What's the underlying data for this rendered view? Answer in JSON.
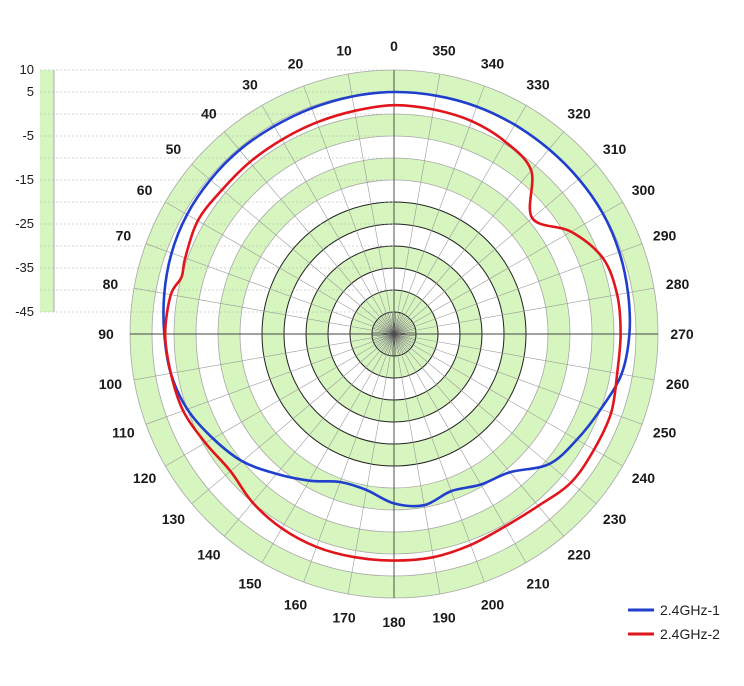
{
  "chart_data": {
    "type": "polar-line",
    "angle_direction": "counter-clockwise",
    "zero_at": "top",
    "angle_ticks": [
      0,
      10,
      20,
      30,
      40,
      50,
      60,
      70,
      80,
      90,
      100,
      110,
      120,
      130,
      140,
      150,
      160,
      170,
      180,
      190,
      200,
      210,
      220,
      230,
      240,
      250,
      260,
      270,
      280,
      290,
      300,
      310,
      320,
      330,
      340,
      350
    ],
    "angle_tick_labels": [
      "0",
      "10",
      "20",
      "30",
      "40",
      "50",
      "60",
      "70",
      "80",
      "90",
      "100",
      "110",
      "120",
      "130",
      "140",
      "150",
      "160",
      "170",
      "180",
      "190",
      "200",
      "210",
      "220",
      "230",
      "240",
      "250",
      "260",
      "270",
      "280",
      "290",
      "300",
      "310",
      "320",
      "330",
      "340",
      "350"
    ],
    "radial_range": [
      -50,
      10
    ],
    "radial_ticks": [
      10,
      5,
      -5,
      -15,
      -25,
      -35,
      -45
    ],
    "radial_tick_labels": [
      "10",
      "5",
      "-5",
      "-15",
      "-25",
      "-35",
      "-45"
    ],
    "grid": true,
    "legend_position": "bottom-right",
    "series": [
      {
        "name": "2.4GHz-1",
        "color": "#1f3fcc",
        "angles": [
          0,
          10,
          20,
          30,
          40,
          50,
          60,
          70,
          80,
          90,
          100,
          110,
          120,
          130,
          140,
          150,
          160,
          170,
          180,
          190,
          200,
          210,
          220,
          230,
          240,
          250,
          260,
          270,
          280,
          290,
          300,
          310,
          320,
          330,
          340,
          350
        ],
        "values": [
          5.0,
          4.8,
          4.6,
          4.5,
          4.6,
          4.5,
          4.3,
          3.8,
          3.0,
          2.2,
          1.5,
          0.0,
          -2.5,
          -5.0,
          -8.5,
          -11.5,
          -14.2,
          -14.0,
          -11.5,
          -10.5,
          -12.0,
          -10.5,
          -9.0,
          -4.0,
          -2.0,
          0.0,
          2.5,
          3.5,
          4.0,
          4.5,
          4.8,
          4.8,
          4.8,
          4.9,
          5.0,
          5.0
        ]
      },
      {
        "name": "2.4GHz-2",
        "color": "#e0161c",
        "angles": [
          0,
          10,
          20,
          30,
          40,
          50,
          60,
          70,
          75,
          80,
          90,
          100,
          110,
          120,
          130,
          140,
          150,
          160,
          170,
          180,
          190,
          200,
          210,
          220,
          230,
          240,
          250,
          260,
          270,
          280,
          290,
          300,
          310,
          320,
          330,
          340,
          350
        ],
        "values": [
          2.0,
          1.5,
          1.2,
          1.0,
          1.0,
          1.0,
          1.5,
          0.5,
          0.0,
          1.5,
          2.0,
          1.5,
          1.0,
          -0.5,
          -1.5,
          0.0,
          1.0,
          1.5,
          1.5,
          1.5,
          1.5,
          1.0,
          0.5,
          1.0,
          2.5,
          2.5,
          2.5,
          1.5,
          1.5,
          1.5,
          0.5,
          -3.5,
          -9.0,
          -1.5,
          0.5,
          1.5,
          1.8
        ]
      }
    ]
  }
}
